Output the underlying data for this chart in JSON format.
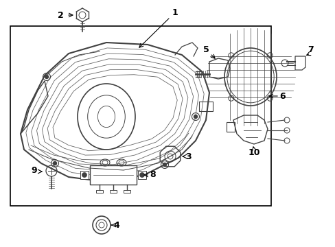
{
  "bg_color": "#ffffff",
  "border_color": "#000000",
  "line_color": "#404040",
  "text_color": "#000000",
  "fig_width": 4.89,
  "fig_height": 3.6,
  "dpi": 100
}
